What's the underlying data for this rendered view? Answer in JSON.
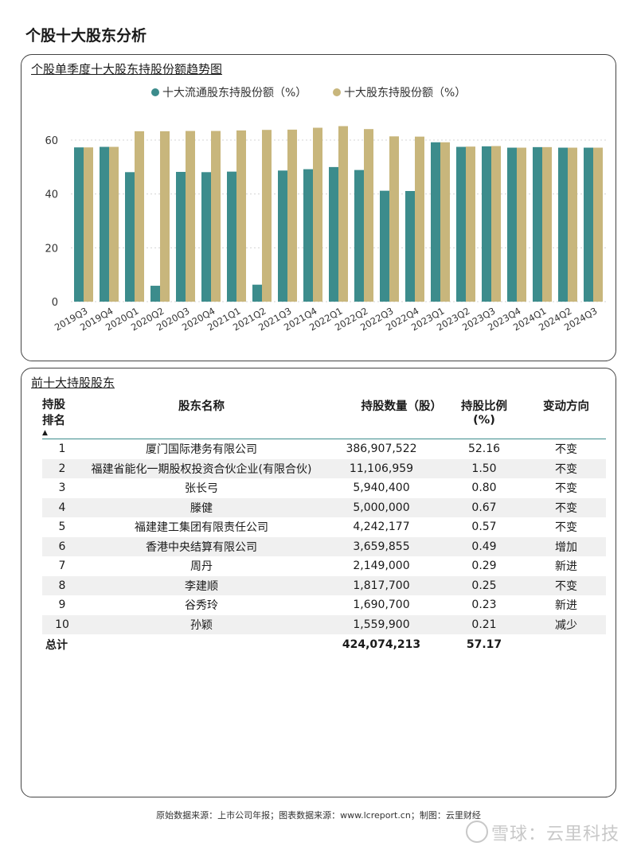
{
  "page_title": "个股十大股东分析",
  "chart_panel": {
    "title": "个股单季度十大股东持股份额趋势图"
  },
  "chart_data": {
    "type": "bar",
    "title": "个股单季度十大股东持股份额趋势图",
    "categories": [
      "2019Q3",
      "2019Q4",
      "2020Q1",
      "2020Q2",
      "2020Q3",
      "2020Q4",
      "2021Q1",
      "2021Q2",
      "2021Q3",
      "2021Q4",
      "2022Q1",
      "2022Q2",
      "2022Q3",
      "2022Q4",
      "2023Q1",
      "2023Q2",
      "2023Q3",
      "2023Q4",
      "2024Q1",
      "2024Q2",
      "2024Q3"
    ],
    "series": [
      {
        "name": "十大流通股东持股份额（%）",
        "color": "#3c8c8c",
        "values": [
          57.3,
          57.5,
          48.1,
          5.9,
          48.2,
          48.1,
          48.3,
          6.3,
          48.7,
          49.2,
          50.0,
          48.9,
          41.2,
          41.1,
          59.2,
          57.5,
          57.7,
          57.2,
          57.4,
          57.2,
          57.2
        ]
      },
      {
        "name": "十大股东持股份额（%）",
        "color": "#c8b67c",
        "values": [
          57.3,
          57.5,
          63.3,
          63.3,
          63.4,
          63.4,
          63.6,
          63.8,
          63.9,
          64.6,
          65.2,
          64.1,
          61.4,
          61.3,
          59.2,
          57.6,
          57.8,
          57.2,
          57.4,
          57.2,
          57.2
        ]
      }
    ],
    "yticks": [
      0,
      20,
      40,
      60
    ],
    "ylim": [
      0,
      68
    ],
    "legend_position": "top-center",
    "grid": true
  },
  "table_panel": {
    "title": "前十大持股股东",
    "headers": {
      "rank_line1": "持股",
      "rank_line2": "排名",
      "rank_sort": "▲",
      "name": "股东名称",
      "shares": "持股数量（股）",
      "pct_line1": "持股比例",
      "pct_line2": "(%)",
      "direction": "变动方向"
    },
    "rows": [
      {
        "rank": "1",
        "name": "厦门国际港务有限公司",
        "shares": "386,907,522",
        "pct": "52.16",
        "direction": "不变"
      },
      {
        "rank": "2",
        "name": "福建省能化一期股权投资合伙企业(有限合伙)",
        "shares": "11,106,959",
        "pct": "1.50",
        "direction": "不变"
      },
      {
        "rank": "3",
        "name": "张长弓",
        "shares": "5,940,400",
        "pct": "0.80",
        "direction": "不变"
      },
      {
        "rank": "4",
        "name": "滕健",
        "shares": "5,000,000",
        "pct": "0.67",
        "direction": "不变"
      },
      {
        "rank": "5",
        "name": "福建建工集团有限责任公司",
        "shares": "4,242,177",
        "pct": "0.57",
        "direction": "不变"
      },
      {
        "rank": "6",
        "name": "香港中央结算有限公司",
        "shares": "3,659,855",
        "pct": "0.49",
        "direction": "增加"
      },
      {
        "rank": "7",
        "name": "周丹",
        "shares": "2,149,000",
        "pct": "0.29",
        "direction": "新进"
      },
      {
        "rank": "8",
        "name": "李建顺",
        "shares": "1,817,700",
        "pct": "0.25",
        "direction": "不变"
      },
      {
        "rank": "9",
        "name": "谷秀玲",
        "shares": "1,690,700",
        "pct": "0.23",
        "direction": "新进"
      },
      {
        "rank": "10",
        "name": "孙颖",
        "shares": "1,559,900",
        "pct": "0.21",
        "direction": "减少"
      }
    ],
    "total": {
      "label": "总计",
      "shares": "424,074,213",
      "pct": "57.17"
    }
  },
  "footer": {
    "source": "原始数据来源：上市公司年报；图表数据来源：www.lcreport.cn；制图：云里财经"
  },
  "watermark": {
    "text": "雪球：云里科技"
  }
}
